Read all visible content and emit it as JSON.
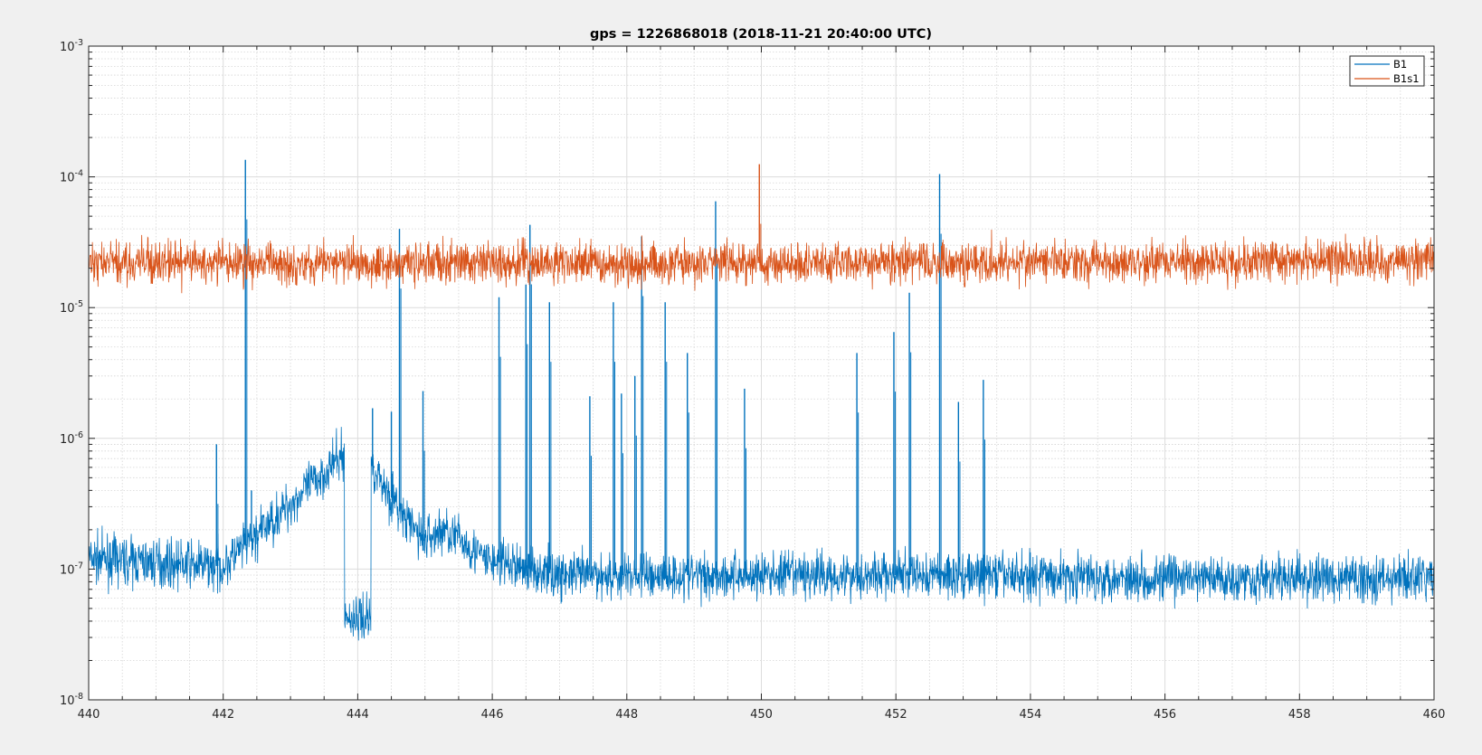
{
  "chart_data": {
    "type": "line",
    "title": "gps = 1226868018 (2018-11-21 20:40:00 UTC)",
    "xlabel": "",
    "ylabel": "",
    "xlim": [
      440,
      460
    ],
    "ylim": [
      1e-08,
      0.001
    ],
    "yscale": "log",
    "grid": "major and minor",
    "legend_position": "top-right",
    "x_ticks": [
      440,
      442,
      444,
      446,
      448,
      450,
      452,
      454,
      456,
      458,
      460
    ],
    "x_tick_labels": [
      "440",
      "442",
      "444",
      "446",
      "448",
      "450",
      "452",
      "454",
      "456",
      "458",
      "460"
    ],
    "y_ticks": [
      1e-08,
      1e-07,
      1e-06,
      1e-05,
      0.0001,
      0.001
    ],
    "y_tick_labels": [
      {
        "base": "10",
        "exp": "-8"
      },
      {
        "base": "10",
        "exp": "-7"
      },
      {
        "base": "10",
        "exp": "-6"
      },
      {
        "base": "10",
        "exp": "-5"
      },
      {
        "base": "10",
        "exp": "-4"
      },
      {
        "base": "10",
        "exp": "-3"
      }
    ],
    "series": [
      {
        "name": "B1",
        "color": "#0072bd",
        "baseline": [
          [
            440,
            1.2e-07
          ],
          [
            442,
            1.05e-07
          ],
          [
            444,
            9.5e-07
          ],
          [
            445,
            1.3e-07
          ],
          [
            446,
            1.15e-07
          ],
          [
            447,
            9e-08
          ],
          [
            450,
            9e-08
          ],
          [
            452,
            9e-08
          ],
          [
            454,
            9e-08
          ],
          [
            456,
            8.5e-08
          ],
          [
            458,
            8.5e-08
          ],
          [
            460,
            8.5e-08
          ]
        ],
        "baseline_note_removed": true,
        "peaks": [
          [
            441.9,
            9e-07
          ],
          [
            442.33,
            0.000135
          ],
          [
            442.42,
            4e-07
          ],
          [
            444.22,
            1.7e-06
          ],
          [
            444.5,
            1.6e-06
          ],
          [
            444.62,
            4e-05
          ],
          [
            444.97,
            2.3e-06
          ],
          [
            446.1,
            1.2e-05
          ],
          [
            446.5,
            1.5e-05
          ],
          [
            446.56,
            4.3e-05
          ],
          [
            446.85,
            1.1e-05
          ],
          [
            447.45,
            2.1e-06
          ],
          [
            447.8,
            1.1e-05
          ],
          [
            447.92,
            2.2e-06
          ],
          [
            448.12,
            3e-06
          ],
          [
            448.22,
            3.5e-05
          ],
          [
            448.57,
            1.1e-05
          ],
          [
            448.9,
            4.5e-06
          ],
          [
            449.32,
            6.5e-05
          ],
          [
            449.75,
            2.4e-06
          ],
          [
            451.42,
            4.5e-06
          ],
          [
            451.97,
            6.5e-06
          ],
          [
            452.2,
            1.3e-05
          ],
          [
            452.65,
            0.000105
          ],
          [
            452.93,
            1.9e-06
          ],
          [
            453.3,
            2.8e-06
          ]
        ]
      },
      {
        "name": "B1s1",
        "color": "#d95319",
        "baseline": [
          [
            440,
            2.2e-05
          ],
          [
            450,
            2.2e-05
          ],
          [
            460,
            2.3e-05
          ]
        ],
        "peaks": [
          [
            449.97,
            0.000125
          ]
        ]
      }
    ]
  }
}
